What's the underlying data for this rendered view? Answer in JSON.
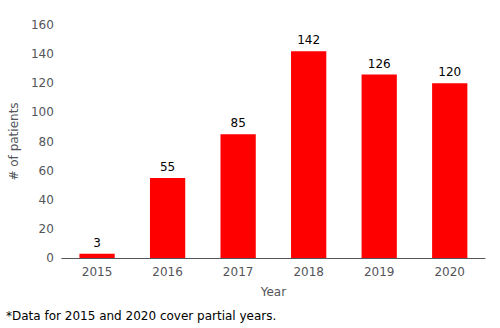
{
  "chart_data": {
    "type": "bar",
    "categories": [
      "2015",
      "2016",
      "2017",
      "2018",
      "2019",
      "2020"
    ],
    "values": [
      3,
      55,
      85,
      142,
      126,
      120
    ],
    "color": "#FF0000",
    "xlabel": "Year",
    "ylabel": "# of patients",
    "ylim": [
      0,
      160
    ],
    "yticks": [
      0,
      20,
      40,
      60,
      80,
      100,
      120,
      140,
      160
    ],
    "grid": false,
    "data_labels": true,
    "footnote": "*Data for 2015 and 2020 cover partial years."
  }
}
